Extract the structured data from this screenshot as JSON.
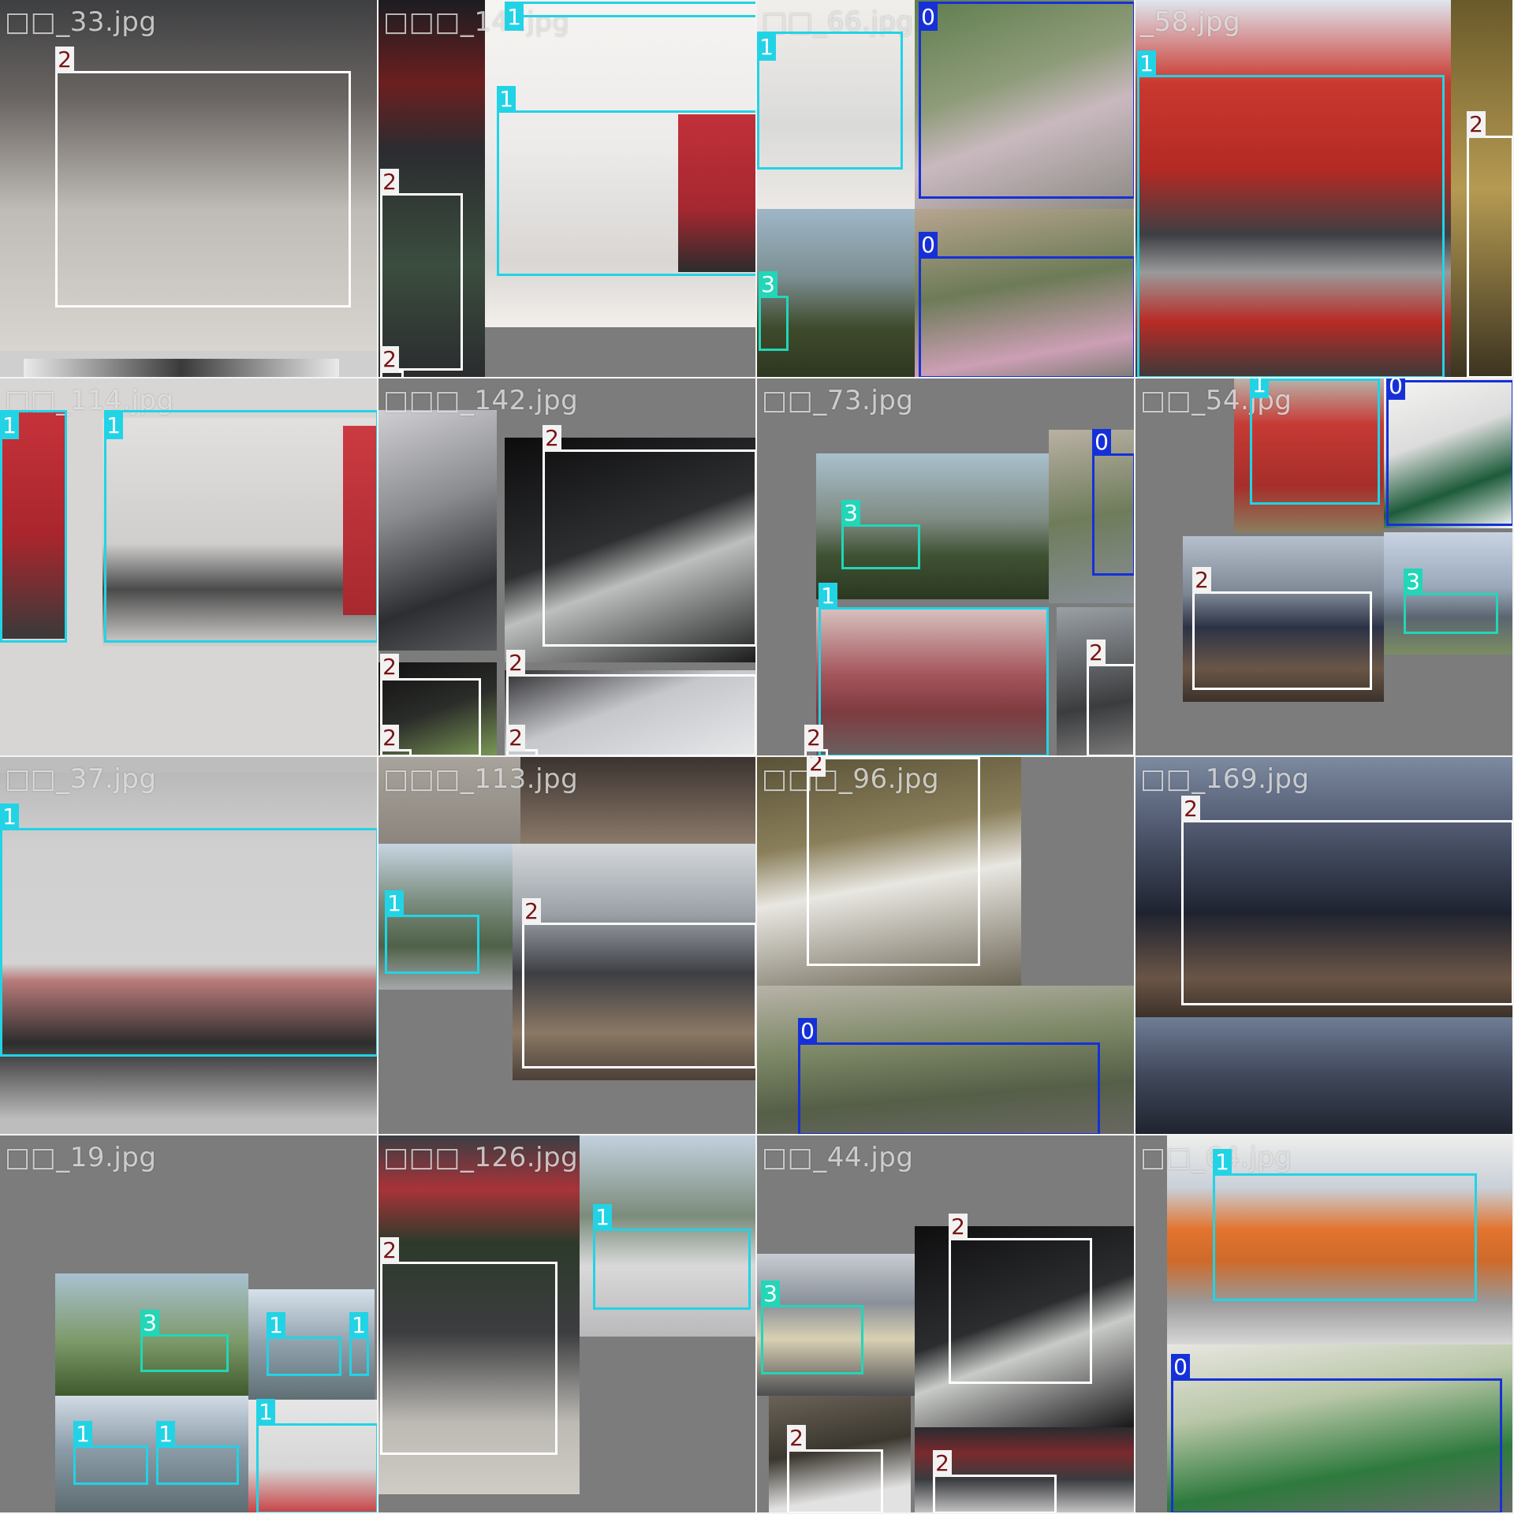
{
  "colors": {
    "class_0": "#1630d8",
    "class_1": "#22d3e6",
    "class_2": "#ffffff",
    "class_3": "#22d6b8",
    "padding_gray": "#7c7c7c"
  },
  "tiles": [
    {
      "filename": "□□_33.jpg",
      "labels": [
        "2"
      ]
    },
    {
      "filename": "□□□_14 .jpg",
      "labels": [
        "1",
        "1",
        "2",
        "2"
      ]
    },
    {
      "filename": "□□_66.jpg",
      "labels": [
        "1",
        "0",
        "3",
        "0"
      ]
    },
    {
      "filename": "_58.jpg",
      "labels": [
        "1",
        "2"
      ]
    },
    {
      "filename": "□□_114.jpg",
      "labels": [
        "1",
        "1"
      ]
    },
    {
      "filename": "□□□_142.jpg",
      "labels": [
        "2",
        "2",
        "2",
        "2",
        "2"
      ]
    },
    {
      "filename": "□□_73.jpg",
      "labels": [
        "0",
        "3",
        "1",
        "2",
        "2"
      ]
    },
    {
      "filename": "□□_54.jpg",
      "labels": [
        "1",
        "0",
        "2",
        "3"
      ]
    },
    {
      "filename": "□□_37.jpg",
      "labels": [
        "1"
      ]
    },
    {
      "filename": "□□□_113.jpg",
      "labels": [
        "1",
        "2"
      ]
    },
    {
      "filename": "□□□_96.jpg",
      "labels": [
        "0"
      ]
    },
    {
      "filename": "□□_169.jpg",
      "labels": [
        "2"
      ]
    },
    {
      "filename": "□□_19.jpg",
      "labels": [
        "3",
        "1",
        "1",
        "1",
        "1",
        "1"
      ]
    },
    {
      "filename": "□□□_126.jpg",
      "labels": [
        "2",
        "1"
      ]
    },
    {
      "filename": "□□_44.jpg",
      "labels": [
        "2",
        "3",
        "2",
        "2"
      ]
    },
    {
      "filename": "□□_64.jpg",
      "labels": [
        "1",
        "0"
      ]
    }
  ]
}
